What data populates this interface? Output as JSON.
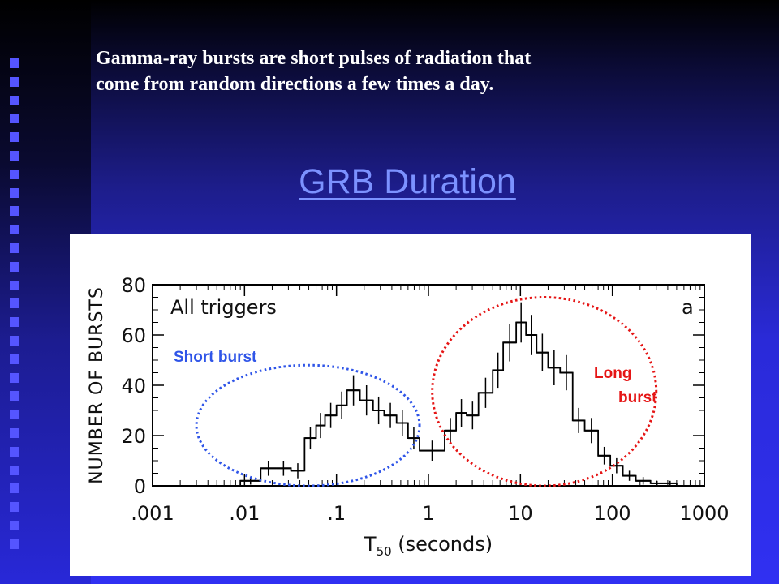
{
  "slide": {
    "subtitle_line1": "Gamma-ray bursts are short pulses of radiation that",
    "subtitle_line2": "come from random directions a few times a day.",
    "title": "GRB Duration"
  },
  "colors": {
    "short_burst": "#2f55e8",
    "long_burst": "#e51515",
    "histogram": "#000000"
  },
  "chart_data": {
    "type": "bar",
    "style": "step-histogram",
    "xscale": "log",
    "xlabel": "T50 (seconds)",
    "ylabel": "NUMBER OF BURSTS",
    "panel_label": "All triggers",
    "panel_letter": "a",
    "xlim": [
      0.001,
      1000
    ],
    "ylim": [
      0,
      80
    ],
    "x_ticks": [
      0.001,
      0.01,
      0.1,
      1,
      10,
      100,
      1000
    ],
    "x_tick_labels": [
      ".001",
      ".01",
      ".1",
      "1",
      "10",
      "100",
      "1000"
    ],
    "y_ticks": [
      0,
      20,
      40,
      60,
      80
    ],
    "y_tick_labels": [
      "0",
      "20",
      "40",
      "60",
      "80"
    ],
    "grid": false,
    "bins": [
      {
        "x0": 0.001,
        "x1": 0.0016,
        "value": 0,
        "err": 0
      },
      {
        "x0": 0.0016,
        "x1": 0.004,
        "value": 0,
        "err": 0
      },
      {
        "x0": 0.004,
        "x1": 0.006,
        "value": 0,
        "err": 0
      },
      {
        "x0": 0.006,
        "x1": 0.009,
        "value": 0,
        "err": 0
      },
      {
        "x0": 0.009,
        "x1": 0.015,
        "value": 2,
        "err": 1.5
      },
      {
        "x0": 0.015,
        "x1": 0.022,
        "value": 7,
        "err": 3
      },
      {
        "x0": 0.022,
        "x1": 0.032,
        "value": 7,
        "err": 3
      },
      {
        "x0": 0.032,
        "x1": 0.045,
        "value": 6,
        "err": 3
      },
      {
        "x0": 0.045,
        "x1": 0.06,
        "value": 19,
        "err": 4.5
      },
      {
        "x0": 0.06,
        "x1": 0.075,
        "value": 24,
        "err": 5
      },
      {
        "x0": 0.075,
        "x1": 0.1,
        "value": 28,
        "err": 5
      },
      {
        "x0": 0.1,
        "x1": 0.13,
        "value": 32,
        "err": 5.5
      },
      {
        "x0": 0.13,
        "x1": 0.18,
        "value": 38,
        "err": 6
      },
      {
        "x0": 0.18,
        "x1": 0.25,
        "value": 34,
        "err": 6
      },
      {
        "x0": 0.25,
        "x1": 0.33,
        "value": 30,
        "err": 5.5
      },
      {
        "x0": 0.33,
        "x1": 0.45,
        "value": 28,
        "err": 5
      },
      {
        "x0": 0.45,
        "x1": 0.6,
        "value": 25,
        "err": 5
      },
      {
        "x0": 0.6,
        "x1": 0.8,
        "value": 19,
        "err": 4.5
      },
      {
        "x0": 0.8,
        "x1": 1.5,
        "value": 14,
        "err": 4
      },
      {
        "x0": 1.5,
        "x1": 2,
        "value": 22,
        "err": 5
      },
      {
        "x0": 2,
        "x1": 2.6,
        "value": 29,
        "err": 5.5
      },
      {
        "x0": 2.6,
        "x1": 3.5,
        "value": 28,
        "err": 5.5
      },
      {
        "x0": 3.5,
        "x1": 5,
        "value": 37,
        "err": 6
      },
      {
        "x0": 5,
        "x1": 6.5,
        "value": 46,
        "err": 7
      },
      {
        "x0": 6.5,
        "x1": 9,
        "value": 57,
        "err": 7.5
      },
      {
        "x0": 9,
        "x1": 11.5,
        "value": 65,
        "err": 8
      },
      {
        "x0": 11.5,
        "x1": 15,
        "value": 60,
        "err": 8
      },
      {
        "x0": 15,
        "x1": 20,
        "value": 53,
        "err": 7.5
      },
      {
        "x0": 20,
        "x1": 27,
        "value": 47,
        "err": 7
      },
      {
        "x0": 27,
        "x1": 37,
        "value": 45,
        "err": 7
      },
      {
        "x0": 37,
        "x1": 50,
        "value": 26,
        "err": 5
      },
      {
        "x0": 50,
        "x1": 70,
        "value": 22,
        "err": 5
      },
      {
        "x0": 70,
        "x1": 95,
        "value": 12,
        "err": 3.5
      },
      {
        "x0": 95,
        "x1": 130,
        "value": 8,
        "err": 3
      },
      {
        "x0": 130,
        "x1": 180,
        "value": 4,
        "err": 2
      },
      {
        "x0": 180,
        "x1": 260,
        "value": 2,
        "err": 1.5
      },
      {
        "x0": 260,
        "x1": 360,
        "value": 1,
        "err": 1
      },
      {
        "x0": 360,
        "x1": 500,
        "value": 1,
        "err": 1
      },
      {
        "x0": 500,
        "x1": 700,
        "value": 0,
        "err": 0
      }
    ],
    "annotations": [
      {
        "text": "Short burst",
        "color": "#2f55e8"
      },
      {
        "text": "Long",
        "text2": "burst",
        "color": "#e51515"
      }
    ],
    "highlight_regions": [
      {
        "name": "short",
        "x_range": [
          0.003,
          0.8
        ],
        "y_range": [
          0,
          48
        ],
        "color": "#2f55e8",
        "style": "dotted-ellipse"
      },
      {
        "name": "long",
        "x_range": [
          1.1,
          300
        ],
        "y_range": [
          0,
          75
        ],
        "color": "#e51515",
        "style": "dotted-ellipse"
      }
    ]
  }
}
